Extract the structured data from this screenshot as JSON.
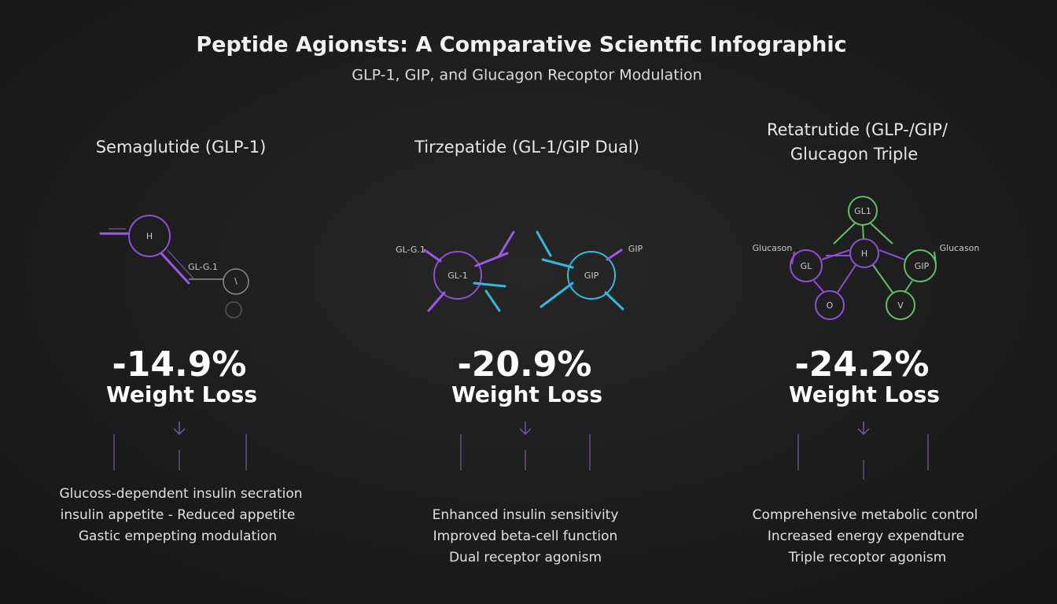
{
  "header": {
    "title": "Peptide Agionsts: A Comparative Scientfic Infographic",
    "subtitle": "GLP-1, GIP, and Glucagon Recoptor Modulation"
  },
  "columns": [
    {
      "title": [
        "Semaglutide (GLP-1)"
      ],
      "diagram_labels": [
        "H",
        "GL-G.1",
        "\\"
      ],
      "stat": "-14.9%",
      "stat_label": "Weight Loss",
      "benefits": [
        "Glucoss-dependent insulin secration",
        "insulin appetite - Reduced appetite",
        "Gastic empepting modulation"
      ]
    },
    {
      "title": [
        "Tirzepatide (GL-1/GIP Dual)"
      ],
      "diagram_labels": [
        "GL-G.1",
        "GL-1",
        "GIP",
        "GIP"
      ],
      "stat": "-20.9%",
      "stat_label": "Weight Loss",
      "benefits": [
        "Enhanced insulin sensitivity",
        "Improved beta-cell function",
        "Dual receptor agonism"
      ]
    },
    {
      "title": [
        "Retatrutide (GLP-/GIP/",
        "Glucagon Triple"
      ],
      "diagram_labels": [
        "GL1",
        "Glucason",
        "GL",
        "H",
        "GIP",
        "Glucason",
        "O",
        "V"
      ],
      "stat": "-24.2%",
      "stat_label": "Weight Loss",
      "benefits": [
        "Comprehensive metabolic control",
        "Increased energy expendture",
        "Triple recoptor agonism"
      ]
    }
  ]
}
